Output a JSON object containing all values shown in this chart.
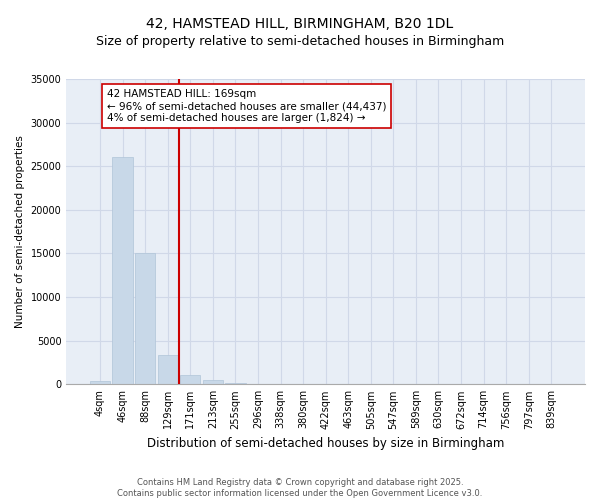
{
  "title1": "42, HAMSTEAD HILL, BIRMINGHAM, B20 1DL",
  "title2": "Size of property relative to semi-detached houses in Birmingham",
  "xlabel": "Distribution of semi-detached houses by size in Birmingham",
  "ylabel": "Number of semi-detached properties",
  "categories": [
    "4sqm",
    "46sqm",
    "88sqm",
    "129sqm",
    "171sqm",
    "213sqm",
    "255sqm",
    "296sqm",
    "338sqm",
    "380sqm",
    "422sqm",
    "463sqm",
    "505sqm",
    "547sqm",
    "589sqm",
    "630sqm",
    "672sqm",
    "714sqm",
    "756sqm",
    "797sqm",
    "839sqm"
  ],
  "values": [
    400,
    26100,
    15100,
    3400,
    1100,
    500,
    180,
    30,
    0,
    0,
    0,
    0,
    0,
    0,
    0,
    0,
    0,
    0,
    0,
    0,
    0
  ],
  "bar_color": "#c8d8e8",
  "bar_edgecolor": "#b0c4d8",
  "property_line_color": "#cc0000",
  "property_line_index": 4,
  "annotation_text": "42 HAMSTEAD HILL: 169sqm\n← 96% of semi-detached houses are smaller (44,437)\n4% of semi-detached houses are larger (1,824) →",
  "annotation_box_color": "#ffffff",
  "annotation_box_edgecolor": "#cc0000",
  "ylim": [
    0,
    35000
  ],
  "yticks": [
    0,
    5000,
    10000,
    15000,
    20000,
    25000,
    30000,
    35000
  ],
  "ytick_labels": [
    "0",
    "5000",
    "10000",
    "15000",
    "20000",
    "25000",
    "30000",
    "35000"
  ],
  "grid_color": "#d0d8e8",
  "bg_color": "#e8eef6",
  "footer1": "Contains HM Land Registry data © Crown copyright and database right 2025.",
  "footer2": "Contains public sector information licensed under the Open Government Licence v3.0.",
  "title_fontsize": 10,
  "subtitle_fontsize": 9,
  "tick_fontsize": 7,
  "ylabel_fontsize": 7.5,
  "xlabel_fontsize": 8.5,
  "annotation_fontsize": 7.5,
  "footer_fontsize": 6
}
